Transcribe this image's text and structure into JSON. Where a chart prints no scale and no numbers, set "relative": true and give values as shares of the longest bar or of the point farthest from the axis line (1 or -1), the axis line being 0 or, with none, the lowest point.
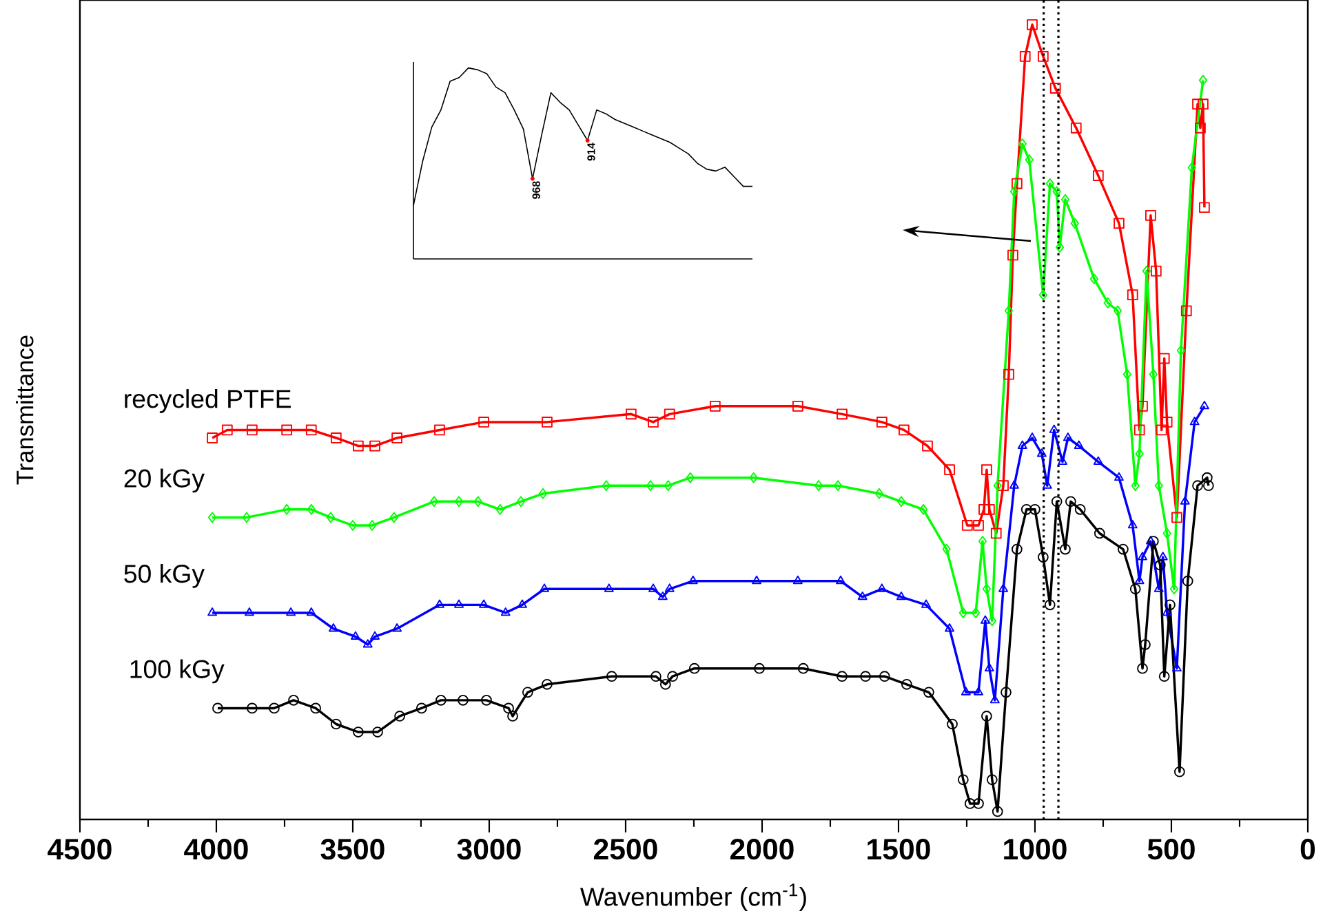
{
  "chart_data": [
    {
      "type": "line",
      "xlabel": "Wavenumber (cm$^{-1}$)",
      "ylabel": "Transmittance",
      "relative": true,
      "xlim": [
        4500,
        0
      ],
      "xticks": [
        4500,
        4000,
        3500,
        3000,
        2500,
        2000,
        1500,
        1000,
        500,
        0
      ],
      "legend": false,
      "ref_lines": [
        {
          "axis": "x",
          "value": 968,
          "line_style": "dotted"
        },
        {
          "axis": "x",
          "value": 914,
          "line_style": "dotted"
        }
      ],
      "series": [
        {
          "name": "recycled PTFE",
          "color": "#ff0000",
          "marker": "square",
          "x": [
            4015,
            3960,
            3869,
            3742,
            3652,
            3561,
            3480,
            3419,
            3338,
            3182,
            3020,
            2788,
            2480,
            2399,
            2339,
            2172,
            1869,
            1707,
            1561,
            1480,
            1394,
            1313,
            1248,
            1207,
            1187,
            1177,
            1167,
            1142,
            1116,
            1096,
            1081,
            1066,
            1036,
            1010,
            970,
            925,
            849,
            768,
            692,
            642,
            617,
            606,
            576,
            556,
            536,
            526,
            516,
            480,
            445,
            404,
            394,
            384,
            379
          ],
          "values": [
            0.48,
            0.49,
            0.49,
            0.49,
            0.49,
            0.48,
            0.47,
            0.47,
            0.48,
            0.49,
            0.5,
            0.5,
            0.51,
            0.5,
            0.51,
            0.52,
            0.52,
            0.51,
            0.5,
            0.49,
            0.47,
            0.44,
            0.37,
            0.37,
            0.39,
            0.44,
            0.39,
            0.36,
            0.42,
            0.56,
            0.71,
            0.8,
            0.96,
            1.0,
            0.96,
            0.92,
            0.87,
            0.81,
            0.75,
            0.66,
            0.49,
            0.52,
            0.76,
            0.69,
            0.49,
            0.58,
            0.5,
            0.38,
            0.64,
            0.9,
            0.87,
            0.9,
            0.77
          ]
        },
        {
          "name": "20 kGy",
          "color": "#00ff00",
          "marker": "diamond",
          "x": [
            4015,
            3889,
            3742,
            3652,
            3581,
            3500,
            3429,
            3349,
            3202,
            3111,
            3041,
            2960,
            2884,
            2803,
            2571,
            2409,
            2344,
            2263,
            2031,
            1793,
            1722,
            1571,
            1490,
            1409,
            1324,
            1263,
            1217,
            1192,
            1177,
            1157,
            1137,
            1096,
            1076,
            1046,
            1021,
            970,
            945,
            920,
            909,
            889,
            854,
            783,
            733,
            697,
            662,
            632,
            617,
            591,
            566,
            546,
            516,
            490,
            465,
            425,
            384
          ],
          "values": [
            0.38,
            0.38,
            0.39,
            0.39,
            0.38,
            0.37,
            0.37,
            0.38,
            0.4,
            0.4,
            0.4,
            0.39,
            0.4,
            0.41,
            0.42,
            0.42,
            0.42,
            0.43,
            0.43,
            0.42,
            0.42,
            0.41,
            0.4,
            0.39,
            0.34,
            0.26,
            0.26,
            0.35,
            0.29,
            0.25,
            0.42,
            0.64,
            0.79,
            0.85,
            0.83,
            0.66,
            0.8,
            0.79,
            0.72,
            0.78,
            0.75,
            0.68,
            0.65,
            0.64,
            0.56,
            0.42,
            0.46,
            0.69,
            0.56,
            0.42,
            0.36,
            0.29,
            0.59,
            0.82,
            0.93
          ]
        },
        {
          "name": "50 kGy",
          "color": "#0000ff",
          "marker": "triangle",
          "x": [
            4015,
            3879,
            3727,
            3652,
            3571,
            3490,
            3445,
            3419,
            3338,
            3182,
            3111,
            3020,
            2940,
            2879,
            2798,
            2561,
            2399,
            2364,
            2339,
            2253,
            2020,
            1869,
            1712,
            1632,
            1561,
            1490,
            1399,
            1313,
            1253,
            1207,
            1182,
            1167,
            1147,
            1116,
            1076,
            1046,
            1010,
            975,
            955,
            930,
            899,
            879,
            839,
            768,
            692,
            642,
            617,
            606,
            576,
            546,
            531,
            516,
            480,
            450,
            415,
            379
          ],
          "values": [
            0.26,
            0.26,
            0.26,
            0.26,
            0.24,
            0.23,
            0.22,
            0.23,
            0.24,
            0.27,
            0.27,
            0.27,
            0.26,
            0.27,
            0.29,
            0.29,
            0.29,
            0.28,
            0.29,
            0.3,
            0.3,
            0.3,
            0.3,
            0.28,
            0.29,
            0.28,
            0.27,
            0.24,
            0.16,
            0.16,
            0.25,
            0.19,
            0.15,
            0.29,
            0.42,
            0.47,
            0.48,
            0.46,
            0.42,
            0.49,
            0.45,
            0.48,
            0.47,
            0.45,
            0.43,
            0.37,
            0.3,
            0.33,
            0.35,
            0.29,
            0.33,
            0.26,
            0.19,
            0.4,
            0.5,
            0.52
          ]
        },
        {
          "name": "100 kGy",
          "color": "#000000",
          "marker": "circle",
          "x": [
            3995,
            3869,
            3788,
            3717,
            3636,
            3561,
            3480,
            3409,
            3328,
            3248,
            3177,
            3096,
            3010,
            2929,
            2914,
            2859,
            2788,
            2551,
            2389,
            2354,
            2328,
            2248,
            2010,
            1849,
            1707,
            1621,
            1551,
            1470,
            1389,
            1303,
            1263,
            1238,
            1207,
            1177,
            1157,
            1137,
            1106,
            1066,
            1031,
            1000,
            970,
            945,
            920,
            889,
            869,
            834,
            763,
            677,
            632,
            606,
            596,
            566,
            541,
            526,
            505,
            470,
            440,
            404,
            369,
            364
          ],
          "values": [
            0.14,
            0.14,
            0.14,
            0.15,
            0.14,
            0.12,
            0.11,
            0.11,
            0.13,
            0.14,
            0.15,
            0.15,
            0.15,
            0.14,
            0.13,
            0.16,
            0.17,
            0.18,
            0.18,
            0.17,
            0.18,
            0.19,
            0.19,
            0.19,
            0.18,
            0.18,
            0.18,
            0.17,
            0.16,
            0.12,
            0.05,
            0.02,
            0.02,
            0.13,
            0.05,
            0.01,
            0.16,
            0.34,
            0.39,
            0.39,
            0.33,
            0.27,
            0.4,
            0.34,
            0.4,
            0.39,
            0.36,
            0.34,
            0.29,
            0.19,
            0.22,
            0.35,
            0.32,
            0.18,
            0.27,
            0.06,
            0.3,
            0.42,
            0.43,
            0.42
          ]
        }
      ]
    },
    {
      "type": "line",
      "relative": true,
      "categories": [
        null,
        null,
        null,
        null,
        null,
        null,
        null,
        null,
        null,
        null,
        null,
        null,
        null,
        null,
        null,
        null,
        null,
        null,
        null,
        null,
        null,
        null,
        null,
        null,
        null,
        null,
        null,
        null,
        null,
        null,
        null,
        null,
        null,
        null,
        null,
        null,
        null,
        null
      ],
      "legend": false,
      "annotations": [
        "968",
        "914"
      ],
      "series": [
        {
          "color": "#000000",
          "marker": "none",
          "values": [
            0.28,
            0.51,
            0.69,
            0.78,
            0.93,
            0.95,
            1.0,
            0.99,
            0.97,
            0.9,
            0.87,
            0.78,
            0.68,
            0.42,
            0.65,
            0.87,
            0.82,
            0.78,
            0.7,
            0.62,
            0.78,
            0.76,
            0.73,
            0.71,
            0.69,
            0.67,
            0.65,
            0.63,
            0.61,
            0.58,
            0.55,
            0.5,
            0.47,
            0.46,
            0.48,
            0.43,
            0.38,
            0.38
          ]
        }
      ]
    }
  ]
}
